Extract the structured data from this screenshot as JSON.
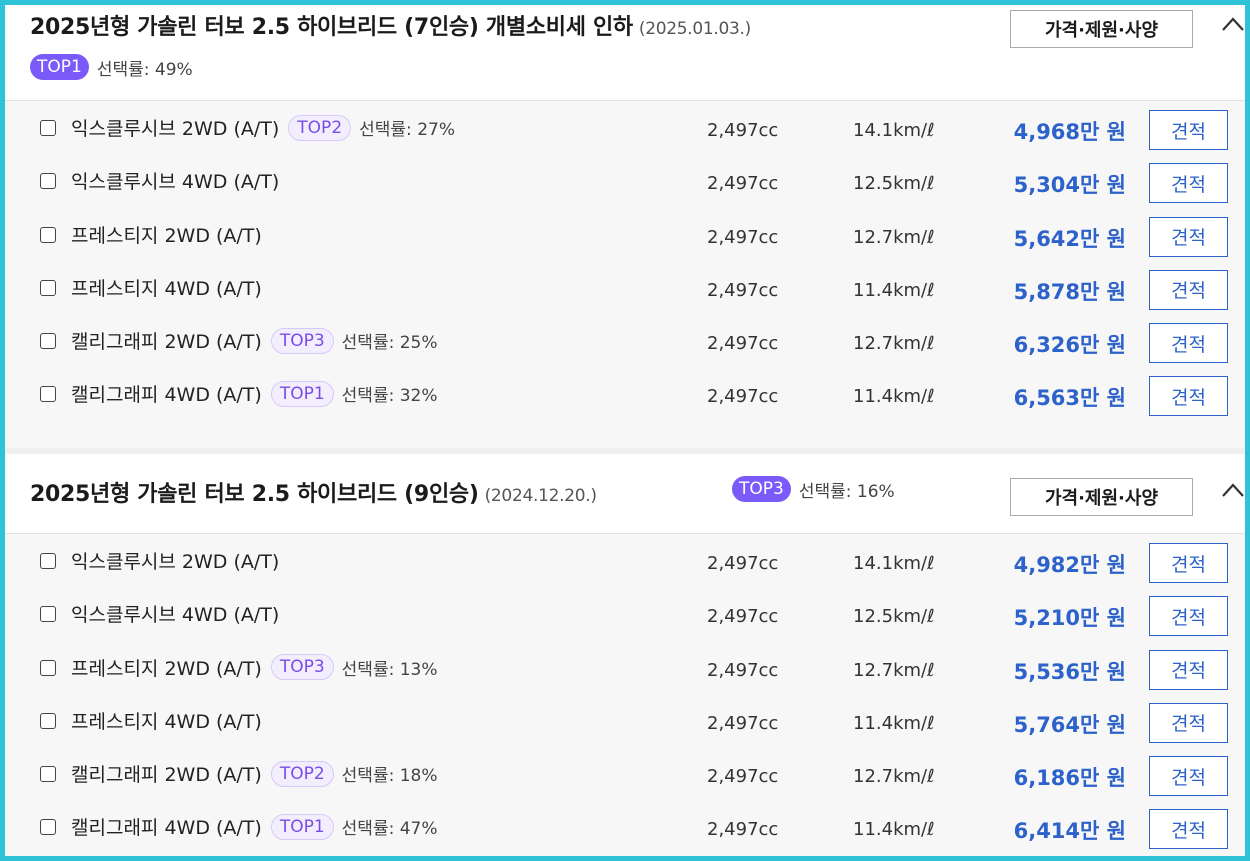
{
  "groups": [
    {
      "title": "2025년형 가솔린 터보 2.5 하이브리드 (7인승) 개별소비세 인하",
      "date": "(2025.01.03.)",
      "rank_badge": "TOP1",
      "selection_rate": "선택률: 49%",
      "spec_button": "가격·제원·사양",
      "trims": [
        {
          "name": "익스클루시브 2WD (A/T)",
          "badge": "TOP2",
          "rate": "선택률: 27%",
          "displacement": "2,497cc",
          "efficiency": "14.1km/ℓ",
          "price": "4,968만 원",
          "quote": "견적"
        },
        {
          "name": "익스클루시브 4WD (A/T)",
          "badge": "",
          "rate": "",
          "displacement": "2,497cc",
          "efficiency": "12.5km/ℓ",
          "price": "5,304만 원",
          "quote": "견적"
        },
        {
          "name": "프레스티지 2WD (A/T)",
          "badge": "",
          "rate": "",
          "displacement": "2,497cc",
          "efficiency": "12.7km/ℓ",
          "price": "5,642만 원",
          "quote": "견적"
        },
        {
          "name": "프레스티지 4WD (A/T)",
          "badge": "",
          "rate": "",
          "displacement": "2,497cc",
          "efficiency": "11.4km/ℓ",
          "price": "5,878만 원",
          "quote": "견적"
        },
        {
          "name": "캘리그래피 2WD (A/T)",
          "badge": "TOP3",
          "rate": "선택률: 25%",
          "displacement": "2,497cc",
          "efficiency": "12.7km/ℓ",
          "price": "6,326만 원",
          "quote": "견적"
        },
        {
          "name": "캘리그래피 4WD (A/T)",
          "badge": "TOP1",
          "rate": "선택률: 32%",
          "displacement": "2,497cc",
          "efficiency": "11.4km/ℓ",
          "price": "6,563만 원",
          "quote": "견적"
        }
      ]
    },
    {
      "title": "2025년형 가솔린 터보 2.5 하이브리드 (9인승)",
      "date": "(2024.12.20.)",
      "rank_badge": "TOP3",
      "selection_rate": "선택률: 16%",
      "spec_button": "가격·제원·사양",
      "trims": [
        {
          "name": "익스클루시브 2WD (A/T)",
          "badge": "",
          "rate": "",
          "displacement": "2,497cc",
          "efficiency": "14.1km/ℓ",
          "price": "4,982만 원",
          "quote": "견적"
        },
        {
          "name": "익스클루시브 4WD (A/T)",
          "badge": "",
          "rate": "",
          "displacement": "2,497cc",
          "efficiency": "12.5km/ℓ",
          "price": "5,210만 원",
          "quote": "견적"
        },
        {
          "name": "프레스티지 2WD (A/T)",
          "badge": "TOP3",
          "rate": "선택률: 13%",
          "displacement": "2,497cc",
          "efficiency": "12.7km/ℓ",
          "price": "5,536만 원",
          "quote": "견적"
        },
        {
          "name": "프레스티지 4WD (A/T)",
          "badge": "",
          "rate": "",
          "displacement": "2,497cc",
          "efficiency": "11.4km/ℓ",
          "price": "5,764만 원",
          "quote": "견적"
        },
        {
          "name": "캘리그래피 2WD (A/T)",
          "badge": "TOP2",
          "rate": "선택률: 18%",
          "displacement": "2,497cc",
          "efficiency": "12.7km/ℓ",
          "price": "6,186만 원",
          "quote": "견적"
        },
        {
          "name": "캘리그래피 4WD (A/T)",
          "badge": "TOP1",
          "rate": "선택률: 47%",
          "displacement": "2,497cc",
          "efficiency": "11.4km/ℓ",
          "price": "6,414만 원",
          "quote": "견적"
        }
      ]
    }
  ],
  "icons": {
    "collapse": "chevron-up-icon",
    "checkbox": "checkbox-icon"
  },
  "colors": {
    "frame": "#2ec3d6",
    "price": "#2c62c9",
    "badge": "#7a5af8",
    "badge_text": "#7a4de8"
  }
}
